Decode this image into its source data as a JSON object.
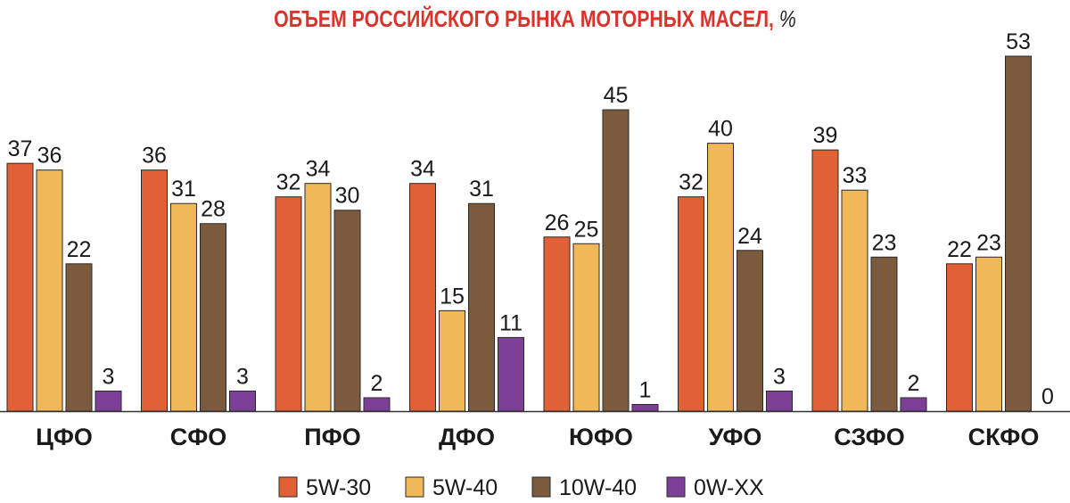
{
  "title": "ОБЪЕМ РОССИЙСКОГО РЫНКА МОТОРНЫХ МАСЕЛ,",
  "title_unit": "%",
  "chart_data": {
    "type": "bar",
    "title": "ОБЪЕМ РОССИЙСКОГО РЫНКА МОТОРНЫХ МАСЕЛ, %",
    "categories": [
      "ЦФО",
      "СФО",
      "ПФО",
      "ДФО",
      "ЮФО",
      "УФО",
      "СЗФО",
      "СКФО"
    ],
    "series": [
      {
        "name": "5W-30",
        "color": "#e06135",
        "values": [
          37,
          36,
          32,
          34,
          26,
          32,
          39,
          22
        ]
      },
      {
        "name": "5W-40",
        "color": "#f0b859",
        "values": [
          36,
          31,
          34,
          15,
          25,
          40,
          33,
          23
        ]
      },
      {
        "name": "10W-40",
        "color": "#7c5a3e",
        "values": [
          22,
          28,
          30,
          31,
          45,
          24,
          23,
          53
        ]
      },
      {
        "name": "0W-XX",
        "color": "#7d3f98",
        "values": [
          3,
          3,
          2,
          11,
          1,
          3,
          2,
          0
        ]
      }
    ],
    "ylim": [
      0,
      53
    ],
    "grid": false,
    "legend_position": "bottom-center"
  }
}
